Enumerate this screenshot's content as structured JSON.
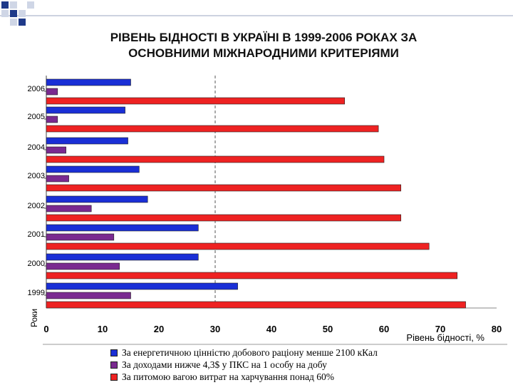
{
  "page": {
    "title_line1": "РІВЕНЬ БІДНОСТІ В УКРАЇНІ В 1999-2006 РОКАХ ЗА",
    "title_line2": "ОСНОВНИМИ МІЖНАРОДНИМИ КРИТЕРІЯМИ"
  },
  "colors": {
    "deco_blue": "#1f3a8a",
    "deco_light": "#cfd6e6",
    "deco_line": "#9aa6c2"
  },
  "chart_data": {
    "type": "bar",
    "orientation": "horizontal",
    "title": "РІВЕНЬ БІДНОСТІ В УКРАЇНІ В 1999-2006 РОКАХ ЗА ОСНОВНИМИ МІЖНАРОДНИМИ КРИТЕРІЯМИ",
    "xlabel": "Рівень бідності, %",
    "ylabel": "Роки",
    "xlim": [
      0,
      80
    ],
    "xticks": [
      "0",
      "10",
      "20",
      "30",
      "40",
      "50",
      "60",
      "70",
      "80"
    ],
    "grid": "dashed vertical line at 30",
    "legend_position": "bottom",
    "categories": [
      "2006",
      "2005",
      "2004",
      "2003",
      "2002",
      "2001",
      "2000",
      "1999"
    ],
    "series": [
      {
        "name": "За енергетичною цінністю добового раціону менше 2100 кКал",
        "color": "#1a2fd6",
        "values": [
          15,
          14,
          14.5,
          16.5,
          18,
          27,
          27,
          34
        ]
      },
      {
        "name": "За доходами нижче 4,3$ у ПКС на 1 особу на добу",
        "color": "#7a2a90",
        "values": [
          2,
          2,
          3.5,
          4,
          8,
          12,
          13,
          15
        ]
      },
      {
        "name": "За питомою вагою витрат на харчування понад 60%",
        "color": "#ee2222",
        "values": [
          53,
          59,
          60,
          63,
          63,
          68,
          73,
          74.5
        ]
      }
    ]
  }
}
